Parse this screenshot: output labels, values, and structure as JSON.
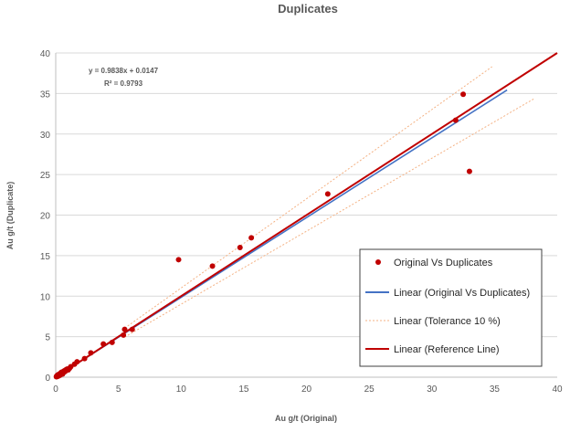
{
  "chart_data": {
    "type": "scatter",
    "title": "Duplicates",
    "xlabel": "Au g/t (Original)",
    "ylabel": "Au g/t (Duplicate)",
    "xlim": [
      0,
      40
    ],
    "ylim": [
      0,
      40
    ],
    "xticks": [
      0,
      5,
      10,
      15,
      20,
      25,
      30,
      35,
      40
    ],
    "yticks": [
      0,
      5,
      10,
      15,
      20,
      25,
      30,
      35,
      40
    ],
    "grid": "horizontal",
    "legend_position": "bottom-right",
    "equation": "y = 0.9838x + 0.0147",
    "r_squared": "R² = 0.9793",
    "colors": {
      "points": "#c00000",
      "trend": "#4472c4",
      "tolerance": "#f4b183",
      "reference": "#c00000",
      "grid": "#d9d9d9",
      "text": "#595959"
    },
    "series": [
      {
        "name": "Original Vs Duplicates",
        "kind": "points",
        "points": [
          [
            0.05,
            0.05
          ],
          [
            0.08,
            0.15
          ],
          [
            0.1,
            0.08
          ],
          [
            0.12,
            0.2
          ],
          [
            0.15,
            0.1
          ],
          [
            0.18,
            0.3
          ],
          [
            0.2,
            0.25
          ],
          [
            0.22,
            0.15
          ],
          [
            0.25,
            0.35
          ],
          [
            0.28,
            0.2
          ],
          [
            0.3,
            0.4
          ],
          [
            0.32,
            0.3
          ],
          [
            0.35,
            0.25
          ],
          [
            0.38,
            0.5
          ],
          [
            0.4,
            0.45
          ],
          [
            0.42,
            0.35
          ],
          [
            0.45,
            0.6
          ],
          [
            0.5,
            0.55
          ],
          [
            0.55,
            0.4
          ],
          [
            0.6,
            0.7
          ],
          [
            0.65,
            0.6
          ],
          [
            0.7,
            0.8
          ],
          [
            0.75,
            0.7
          ],
          [
            0.8,
            0.9
          ],
          [
            0.9,
            1.0
          ],
          [
            1.0,
            0.9
          ],
          [
            1.1,
            1.1
          ],
          [
            1.2,
            1.3
          ],
          [
            1.5,
            1.6
          ],
          [
            1.7,
            1.9
          ],
          [
            2.3,
            2.3
          ],
          [
            2.8,
            3.0
          ],
          [
            3.8,
            4.1
          ],
          [
            4.5,
            4.3
          ],
          [
            5.4,
            5.2
          ],
          [
            5.5,
            5.9
          ],
          [
            6.1,
            5.9
          ],
          [
            9.8,
            14.5
          ],
          [
            12.5,
            13.7
          ],
          [
            14.7,
            16.0
          ],
          [
            15.6,
            17.2
          ],
          [
            21.7,
            22.6
          ],
          [
            31.9,
            31.7
          ],
          [
            32.5,
            34.9
          ],
          [
            33.0,
            25.4
          ]
        ]
      },
      {
        "name": "Linear (Original Vs Duplicates)",
        "kind": "line",
        "from": [
          0,
          0.0147
        ],
        "to": [
          36,
          35.43
        ]
      },
      {
        "name": "Linear (Tolerance 10 %)",
        "kind": "dashed",
        "lines": [
          {
            "from": [
              5.5,
              6.05
            ],
            "to": [
              34.8,
              38.3
            ]
          },
          {
            "from": [
              5.5,
              4.95
            ],
            "to": [
              38.2,
              34.4
            ]
          }
        ]
      },
      {
        "name": "Linear (Reference Line)",
        "kind": "line",
        "from": [
          0,
          0
        ],
        "to": [
          40,
          40
        ]
      }
    ]
  }
}
